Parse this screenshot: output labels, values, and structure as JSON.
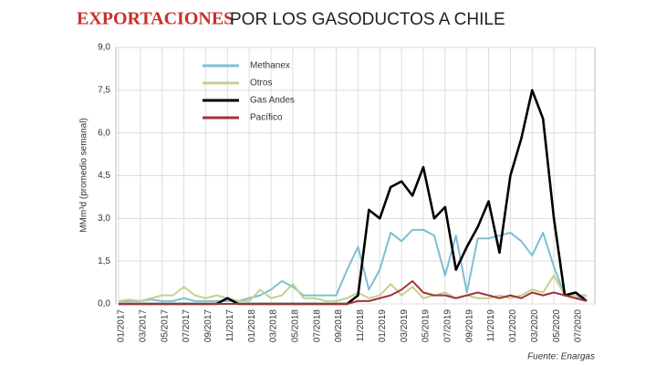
{
  "chart_data": {
    "type": "line",
    "title": "EXPORTACIONES",
    "subtitle": "POR LOS GASODUCTOS A CHILE",
    "y_label": "MMm³d  (promedio semanal)",
    "source": "Fuente: Enargas",
    "categories": [
      "01/2017",
      null,
      "03/2017",
      null,
      "05/2017",
      null,
      "07/2017",
      null,
      "09/2017",
      null,
      "11/2017",
      null,
      "01/2018",
      null,
      "03/2018",
      null,
      "05/2018",
      null,
      "07/2018",
      null,
      "09/2018",
      null,
      "11/2018",
      null,
      "01/2019",
      null,
      "03/2019",
      null,
      "05/2019",
      null,
      "07/2019",
      null,
      "09/2019",
      null,
      "11/2019",
      null,
      "01/2020",
      null,
      "03/2020",
      null,
      "05/2020",
      null,
      "07/2020",
      null
    ],
    "ylim": [
      0,
      9
    ],
    "yticks": [
      {
        "value": 0,
        "label": "0,0"
      },
      {
        "value": 1.5,
        "label": "1,5"
      },
      {
        "value": 3,
        "label": "3,0"
      },
      {
        "value": 4.5,
        "label": "4,5"
      },
      {
        "value": 6,
        "label": "6,0"
      },
      {
        "value": 7.5,
        "label": "7,5"
      },
      {
        "value": 9,
        "label": "9,0"
      }
    ],
    "grid": true,
    "legend": "top-left",
    "series": [
      {
        "name": "Methanex",
        "color": "#7dbfd4",
        "values": [
          0.1,
          0.1,
          0.1,
          0.15,
          0.1,
          0.1,
          0.2,
          0.1,
          0.1,
          0.1,
          0.1,
          0.1,
          0.2,
          0.3,
          0.5,
          0.8,
          0.6,
          0.3,
          0.3,
          0.3,
          0.3,
          1.2,
          2.0,
          0.5,
          1.2,
          2.5,
          2.2,
          2.6,
          2.6,
          2.4,
          1.0,
          2.4,
          0.4,
          2.3,
          2.3,
          2.4,
          2.5,
          2.2,
          1.7,
          2.5,
          1.3,
          0.3,
          0.2,
          0.3
        ]
      },
      {
        "name": "Otros",
        "color": "#c5d08e",
        "values": [
          0.1,
          0.15,
          0.1,
          0.2,
          0.3,
          0.3,
          0.6,
          0.3,
          0.2,
          0.3,
          0.2,
          0.1,
          0.1,
          0.5,
          0.2,
          0.3,
          0.7,
          0.2,
          0.2,
          0.1,
          0.1,
          0.2,
          0.4,
          0.2,
          0.3,
          0.7,
          0.3,
          0.6,
          0.2,
          0.3,
          0.4,
          0.2,
          0.3,
          0.2,
          0.2,
          0.3,
          0.2,
          0.3,
          0.5,
          0.4,
          1.0,
          0.3,
          0.3,
          0.3
        ]
      },
      {
        "name": "Gas Andes",
        "color": "#000000",
        "values": [
          0,
          0,
          0,
          0,
          0,
          0,
          0,
          0,
          0,
          0,
          0.2,
          0,
          0,
          0,
          0,
          0,
          0,
          0,
          0,
          0,
          0,
          0,
          0.3,
          3.3,
          3.0,
          4.1,
          4.3,
          3.8,
          4.8,
          3.0,
          3.4,
          1.2,
          2.0,
          2.7,
          3.6,
          1.8,
          4.5,
          5.8,
          7.5,
          6.5,
          3.0,
          0.3,
          0.4,
          0.1
        ]
      },
      {
        "name": "Pacífico",
        "color": "#a3343a",
        "values": [
          0,
          0,
          0,
          0,
          0,
          0,
          0,
          0,
          0,
          0,
          0,
          0,
          0,
          0,
          0,
          0,
          0,
          0,
          0,
          0,
          0,
          0,
          0.1,
          0.1,
          0.2,
          0.3,
          0.5,
          0.8,
          0.4,
          0.3,
          0.3,
          0.2,
          0.3,
          0.4,
          0.3,
          0.2,
          0.3,
          0.2,
          0.4,
          0.3,
          0.4,
          0.3,
          0.2,
          0.1
        ]
      }
    ]
  }
}
